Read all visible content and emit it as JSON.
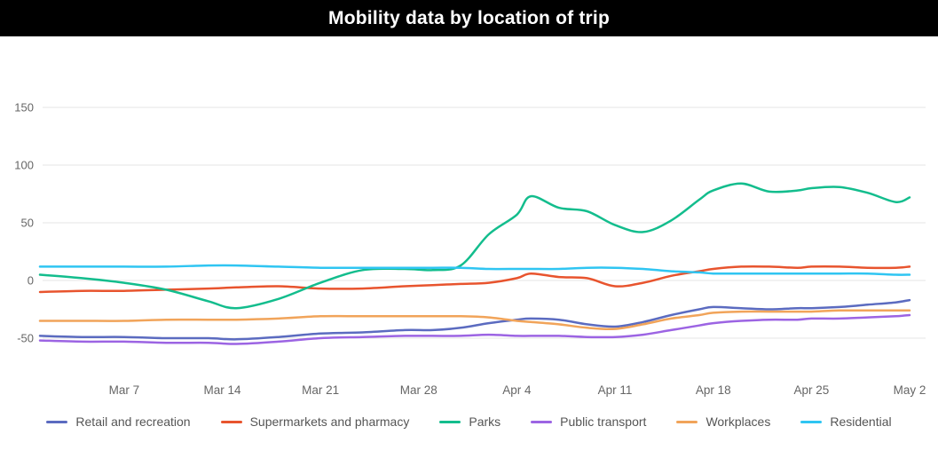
{
  "header": {
    "title": "Mobility data by location of trip"
  },
  "style": {
    "header_bg": "#000000",
    "background": "#ffffff",
    "grid_color": "#e6e6e6",
    "axis_label_color": "#666666",
    "legend_text_color": "#555555"
  },
  "chart_data": {
    "type": "line",
    "title": "Mobility data by location of trip",
    "xlabel": "",
    "ylabel": "",
    "grid": "horizontal",
    "legend_position": "bottom",
    "ylim": [
      -80,
      170
    ],
    "y_ticks": [
      -50,
      0,
      50,
      100,
      150
    ],
    "x_unit": "days since Mar 1",
    "x_range": [
      0,
      62
    ],
    "x_tick_labels": [
      {
        "day": 6,
        "label": "Mar 7"
      },
      {
        "day": 13,
        "label": "Mar 14"
      },
      {
        "day": 20,
        "label": "Mar 21"
      },
      {
        "day": 27,
        "label": "Mar 28"
      },
      {
        "day": 34,
        "label": "Apr 4"
      },
      {
        "day": 41,
        "label": "Apr 11"
      },
      {
        "day": 48,
        "label": "Apr 18"
      },
      {
        "day": 55,
        "label": "Apr 25"
      },
      {
        "day": 62,
        "label": "May 2"
      }
    ],
    "x": [
      0,
      3,
      6,
      9,
      12,
      14,
      17,
      20,
      23,
      26,
      28,
      30,
      32,
      34,
      35,
      37,
      39,
      41,
      43,
      45,
      47,
      48,
      50,
      52,
      54,
      55,
      57,
      59,
      61,
      62
    ],
    "series": [
      {
        "name": "Retail and recreation",
        "color": "#5b6bc0",
        "values": [
          -48,
          -49,
          -49,
          -50,
          -50,
          -51,
          -49,
          -46,
          -45,
          -43,
          -43,
          -41,
          -37,
          -34,
          -33,
          -34,
          -38,
          -40,
          -36,
          -30,
          -25,
          -23,
          -24,
          -25,
          -24,
          -24,
          -23,
          -21,
          -19,
          -17
        ]
      },
      {
        "name": "Supermarkets and pharmacy",
        "color": "#e8542e",
        "values": [
          -10,
          -9,
          -9,
          -8,
          -7,
          -6,
          -5,
          -7,
          -7,
          -5,
          -4,
          -3,
          -2,
          2,
          6,
          3,
          2,
          -5,
          -2,
          4,
          8,
          10,
          12,
          12,
          11,
          12,
          12,
          11,
          11,
          12
        ]
      },
      {
        "name": "Parks",
        "color": "#13bd8d",
        "values": [
          5,
          2,
          -2,
          -8,
          -18,
          -24,
          -16,
          -2,
          9,
          10,
          9,
          13,
          40,
          57,
          73,
          63,
          60,
          48,
          42,
          52,
          70,
          78,
          84,
          77,
          78,
          80,
          81,
          76,
          68,
          72
        ]
      },
      {
        "name": "Public transport",
        "color": "#9c64e3",
        "values": [
          -52,
          -53,
          -53,
          -54,
          -54,
          -55,
          -53,
          -50,
          -49,
          -48,
          -48,
          -48,
          -47,
          -48,
          -48,
          -48,
          -49,
          -49,
          -47,
          -43,
          -39,
          -37,
          -35,
          -34,
          -34,
          -33,
          -33,
          -32,
          -31,
          -30
        ]
      },
      {
        "name": "Workplaces",
        "color": "#f1a45a",
        "values": [
          -35,
          -35,
          -35,
          -34,
          -34,
          -34,
          -33,
          -31,
          -31,
          -31,
          -31,
          -31,
          -32,
          -35,
          -36,
          -38,
          -41,
          -42,
          -38,
          -33,
          -30,
          -28,
          -27,
          -27,
          -27,
          -27,
          -26,
          -26,
          -26,
          -26
        ]
      },
      {
        "name": "Residential",
        "color": "#2fc5f2",
        "values": [
          12,
          12,
          12,
          12,
          13,
          13,
          12,
          11,
          11,
          11,
          11,
          11,
          10,
          10,
          10,
          10,
          11,
          11,
          10,
          8,
          7,
          6,
          6,
          6,
          6,
          6,
          6,
          6,
          5,
          5
        ]
      }
    ]
  }
}
